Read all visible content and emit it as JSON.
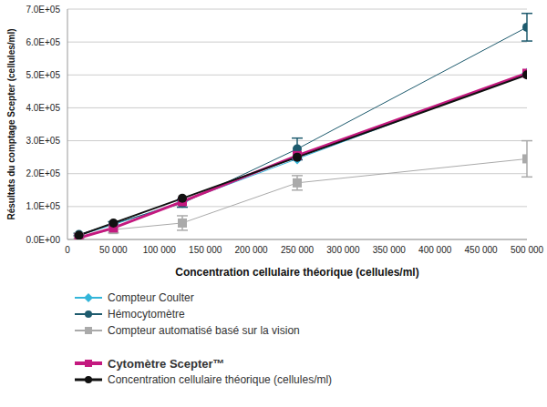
{
  "chart_data": {
    "type": "line",
    "x_label": "Concentration cellulaire théorique (cellules/ml)",
    "y_label": "Résultats du comptage Scepter (cellules/ml)",
    "x": [
      12500,
      50000,
      125000,
      250000,
      500000
    ],
    "xlim": [
      0,
      500000
    ],
    "xticks": [
      0,
      {
        "value": 50000,
        "label": "50 000"
      },
      {
        "value": 100000,
        "label": "100 000"
      },
      {
        "value": 150000,
        "label": "150 000"
      },
      {
        "value": 200000,
        "label": "200 000"
      },
      {
        "value": 250000,
        "label": "250 000"
      },
      {
        "value": 300000,
        "label": "300 000"
      },
      {
        "value": 350000,
        "label": "350 000"
      },
      {
        "value": 400000,
        "label": "400 000"
      },
      {
        "value": 450000,
        "label": "450 000"
      },
      {
        "value": 500000,
        "label": "500 000"
      }
    ],
    "ylim": [
      0,
      700000
    ],
    "yticks": [
      {
        "value": 0,
        "label": "0.0E+00"
      },
      {
        "value": 100000,
        "label": "1.0E+05"
      },
      {
        "value": 200000,
        "label": "2.0E+05"
      },
      {
        "value": 300000,
        "label": "3.0E+05"
      },
      {
        "value": 400000,
        "label": "4.0E+05"
      },
      {
        "value": 500000,
        "label": "5.0E+05"
      },
      {
        "value": 600000,
        "label": "6.0E+05"
      },
      {
        "value": 700000,
        "label": "7.0E+05"
      }
    ],
    "grid": true,
    "legend": "bottom",
    "series": [
      {
        "name": "Compteur Coulter",
        "color": "#33b5d9",
        "marker": "diamond",
        "values": [
          12000,
          45000,
          115000,
          245000,
          505000
        ]
      },
      {
        "name": "Hémocytomètre",
        "color": "#1e5b6e",
        "marker": "circle",
        "values": [
          15000,
          48000,
          110000,
          275000,
          645000
        ],
        "errors": [
          4000,
          6000,
          12000,
          33000,
          42000
        ]
      },
      {
        "name": "Compteur automatisé basé sur la vision",
        "color": "#aaaaaa",
        "marker": "square",
        "values": [
          8000,
          30000,
          50000,
          172000,
          245000
        ],
        "errors": [
          5000,
          10000,
          22000,
          22000,
          55000
        ]
      },
      {
        "name": "Cytomètre Scepter™",
        "color": "#c4197f",
        "marker": "square",
        "values": [
          5000,
          35000,
          115000,
          255000,
          505000
        ]
      },
      {
        "name": "Concentration cellulaire théorique (cellules/ml)",
        "color": "#111111",
        "marker": "circle",
        "values": [
          12500,
          50000,
          125000,
          250000,
          500000
        ]
      }
    ]
  }
}
